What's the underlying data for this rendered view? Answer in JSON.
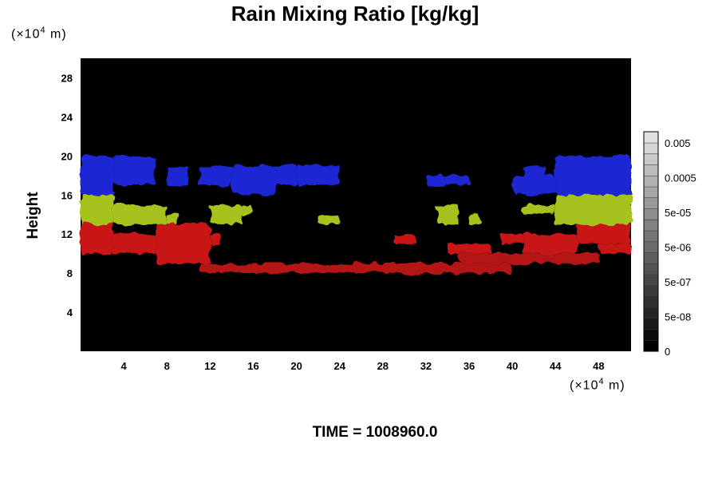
{
  "chart_data": {
    "type": "heatmap",
    "title": "Rain Mixing Ratio [kg/kg]",
    "ylabel": "Height",
    "xlabel": "",
    "x_unit": {
      "prefix": "(×10",
      "exponent": "4",
      "suffix": " m)"
    },
    "y_unit": {
      "prefix": "(×10",
      "exponent": "4",
      "suffix": " m)"
    },
    "xlim": [
      0,
      51
    ],
    "ylim": [
      0,
      30
    ],
    "x_ticks": [
      4,
      8,
      12,
      16,
      20,
      24,
      28,
      32,
      36,
      40,
      44,
      48
    ],
    "y_ticks": [
      4,
      8,
      12,
      16,
      20,
      24,
      28
    ],
    "colorbar": {
      "tick_labels": [
        "0.005",
        "0.0005",
        "5e-05",
        "5e-06",
        "5e-07",
        "5e-08",
        "0"
      ],
      "levels": 20
    },
    "regions": [
      {
        "color": "#1e28d2",
        "cells": [
          [
            0,
            16,
            3,
            20
          ],
          [
            3,
            17,
            7,
            20
          ],
          [
            8,
            17,
            10,
            19
          ],
          [
            11,
            17,
            14,
            19
          ],
          [
            14,
            16,
            18,
            19
          ],
          [
            17,
            17,
            20,
            19
          ],
          [
            20,
            17,
            24,
            19
          ],
          [
            32,
            17,
            36,
            18
          ],
          [
            40,
            16,
            44,
            18
          ],
          [
            44,
            16,
            51,
            20
          ],
          [
            45,
            18,
            51,
            20
          ],
          [
            41,
            17,
            43,
            19
          ]
        ]
      },
      {
        "color": "#a6c21e",
        "cells": [
          [
            0,
            12,
            3,
            16
          ],
          [
            3,
            13,
            8,
            15
          ],
          [
            8,
            13,
            9,
            14
          ],
          [
            12,
            13,
            15,
            15
          ],
          [
            15,
            14,
            16,
            15
          ],
          [
            22,
            13,
            24,
            14
          ],
          [
            33,
            13,
            35,
            15
          ],
          [
            36,
            13,
            37,
            14
          ],
          [
            41,
            14,
            44,
            15
          ],
          [
            44,
            13,
            49,
            16
          ],
          [
            48,
            13,
            51,
            16
          ]
        ]
      },
      {
        "color": "#c81414",
        "cells": [
          [
            0,
            10,
            3,
            13
          ],
          [
            3,
            10,
            7,
            12
          ],
          [
            7,
            9,
            12,
            13
          ],
          [
            12,
            11,
            13,
            12
          ],
          [
            29,
            11,
            31,
            12
          ],
          [
            34,
            10,
            38,
            11
          ],
          [
            39,
            11,
            41,
            12
          ],
          [
            41,
            10,
            46,
            12
          ],
          [
            46,
            11,
            51,
            13
          ],
          [
            48,
            10,
            51,
            11
          ]
        ]
      },
      {
        "color": "#b41414",
        "cells": [
          [
            11,
            8,
            40,
            9
          ],
          [
            35,
            9,
            48,
            10
          ]
        ]
      }
    ],
    "annotation": "TIME = 1008960.0"
  }
}
